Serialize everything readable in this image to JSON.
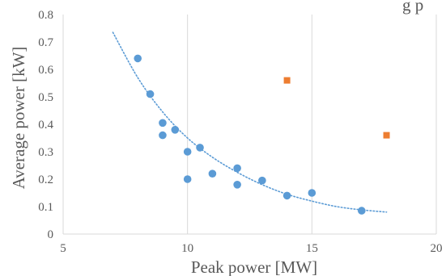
{
  "chart_data": {
    "type": "scatter",
    "title": "",
    "xlabel": "Peak power [MW]",
    "ylabel": "Average power [kW]",
    "partial_title_text": "g p",
    "xlim": [
      5,
      20
    ],
    "ylim": [
      0,
      0.8
    ],
    "x_ticks": [
      "5",
      "10",
      "15",
      "20"
    ],
    "y_ticks": [
      "0",
      "0.1",
      "0.2",
      "0.3",
      "0.4",
      "0.5",
      "0.6",
      "0.7",
      "0.8"
    ],
    "grid": "vertical",
    "series": [
      {
        "marker": "circle",
        "color": "#5b9bd5",
        "points": [
          {
            "x": 8,
            "y": 0.64
          },
          {
            "x": 8.5,
            "y": 0.51
          },
          {
            "x": 9,
            "y": 0.405
          },
          {
            "x": 9,
            "y": 0.36
          },
          {
            "x": 9.5,
            "y": 0.38
          },
          {
            "x": 10,
            "y": 0.3
          },
          {
            "x": 10,
            "y": 0.2
          },
          {
            "x": 10.5,
            "y": 0.315
          },
          {
            "x": 11,
            "y": 0.22
          },
          {
            "x": 12,
            "y": 0.24
          },
          {
            "x": 12,
            "y": 0.18
          },
          {
            "x": 13,
            "y": 0.195
          },
          {
            "x": 14,
            "y": 0.14
          },
          {
            "x": 15,
            "y": 0.15
          },
          {
            "x": 17,
            "y": 0.085
          }
        ]
      },
      {
        "marker": "square",
        "color": "#ed7d31",
        "points": [
          {
            "x": 14,
            "y": 0.56
          },
          {
            "x": 18,
            "y": 0.36
          }
        ]
      }
    ],
    "trendline": {
      "style": "dotted",
      "color": "#5b9bd5",
      "x_range": [
        7,
        18
      ],
      "points": [
        {
          "x": 7,
          "y": 0.735
        },
        {
          "x": 8,
          "y": 0.57
        },
        {
          "x": 9,
          "y": 0.445
        },
        {
          "x": 10,
          "y": 0.35
        },
        {
          "x": 11,
          "y": 0.28
        },
        {
          "x": 12,
          "y": 0.225
        },
        {
          "x": 13,
          "y": 0.18
        },
        {
          "x": 14,
          "y": 0.145
        },
        {
          "x": 15,
          "y": 0.12
        },
        {
          "x": 16,
          "y": 0.1
        },
        {
          "x": 17,
          "y": 0.088
        },
        {
          "x": 18,
          "y": 0.08
        }
      ]
    }
  }
}
